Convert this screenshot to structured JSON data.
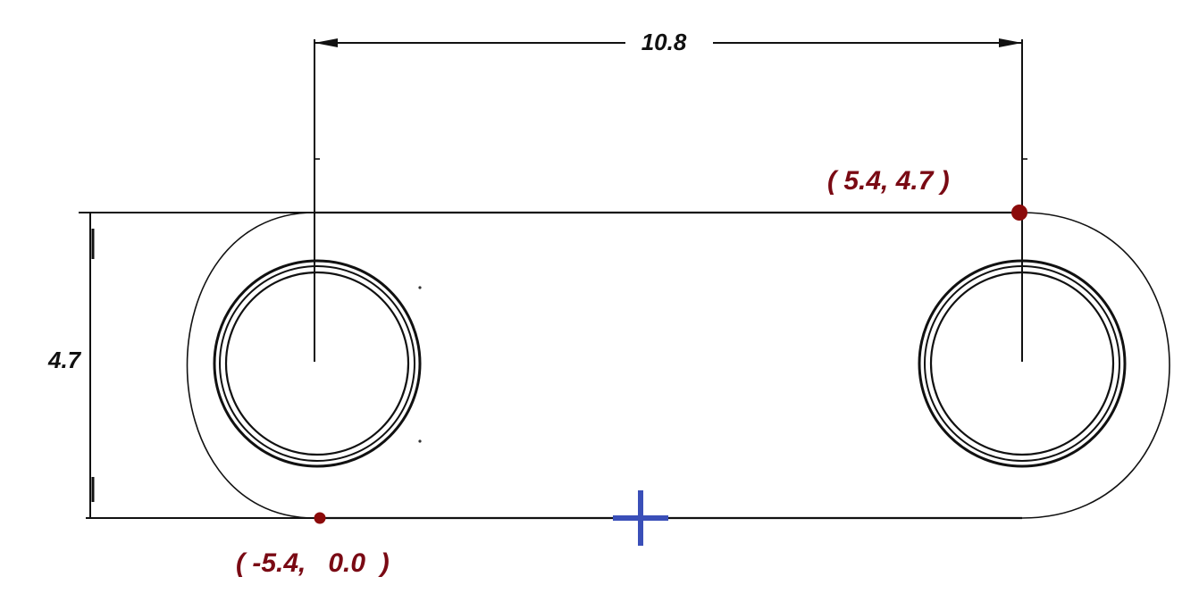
{
  "dimensions": {
    "width_label": "10.8",
    "height_label": "4.7"
  },
  "points": {
    "top_right_label": "( 5.4, 4.7 )",
    "bottom_left_label": "( -5.4,   0.0  )"
  },
  "colors": {
    "line": "#111111",
    "point": "#8b0a0a",
    "point_label": "#7a0a14",
    "origin_marker": "#3a4fb8"
  },
  "icons": {
    "origin": "plus-marker"
  }
}
